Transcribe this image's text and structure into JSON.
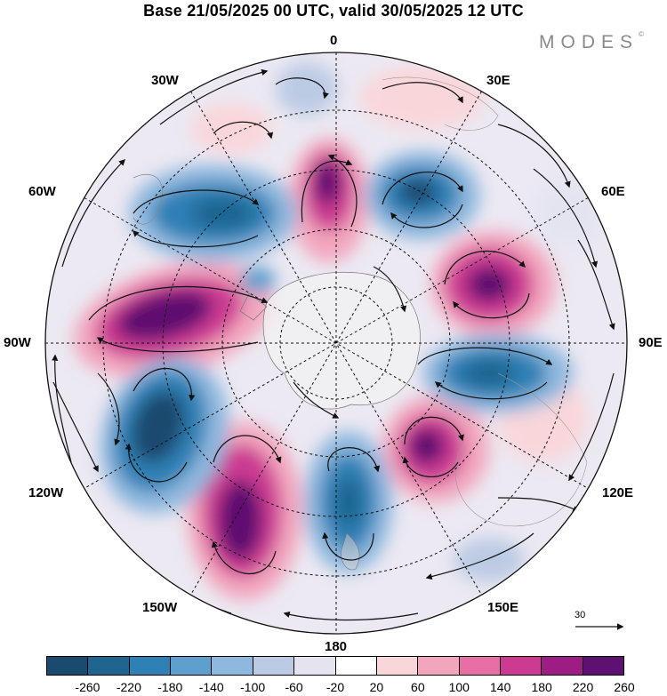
{
  "title": "Base 21/05/2025 00 UTC, valid 30/05/2025 12 UTC",
  "brand": "MODES",
  "brand_mark": "©",
  "lon_labels": {
    "l0": "0",
    "l30e": "30E",
    "l60e": "60E",
    "l90e": "90E",
    "l120e": "120E",
    "l150e": "150E",
    "l180": "180",
    "l150w": "150W",
    "l120w": "120W",
    "l90w": "90W",
    "l60w": "60W",
    "l30w": "30W"
  },
  "reference_vector": {
    "label": "30"
  },
  "colorbar": {
    "ticks": [
      "-260",
      "-220",
      "-180",
      "-140",
      "-100",
      "-60",
      "-20",
      "20",
      "60",
      "100",
      "140",
      "180",
      "220",
      "260"
    ],
    "colors": [
      "#1a4a6e",
      "#1f6590",
      "#2f80b5",
      "#5e9fcd",
      "#8fb8de",
      "#bccbe4",
      "#e4e4f1",
      "#ffffff",
      "#f9d6da",
      "#f2a6bd",
      "#e86fa5",
      "#cc3a92",
      "#9e1d85",
      "#5e1170"
    ]
  },
  "map": {
    "projection": "south polar stereographic",
    "features": [
      "streamlines with arrows",
      "coastlines",
      "latitude circles",
      "meridians"
    ]
  }
}
